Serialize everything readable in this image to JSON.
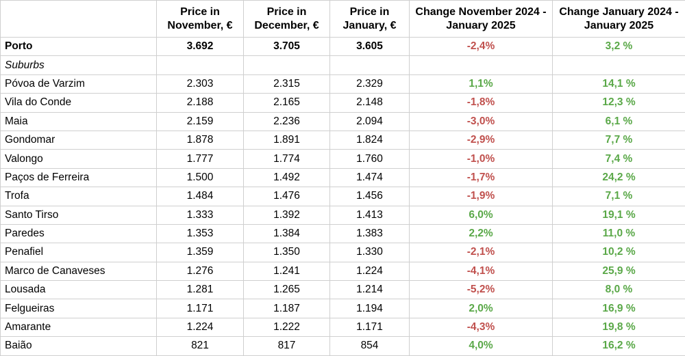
{
  "table": {
    "columns": [
      "Price in November, €",
      "Price in December, €",
      "Price in January, €",
      "Change November 2024 - January 2025",
      "Change January 2024 - January 2025"
    ],
    "headline_row": [
      "Porto",
      "3.692",
      "3.705",
      "3.605",
      "-2,4%",
      "3,2 %"
    ],
    "section": "Suburbs",
    "rows": [
      [
        "Póvoa de Varzim",
        "2.303",
        "2.315",
        "2.329",
        "1,1%",
        "14,1 %"
      ],
      [
        "Vila do Conde",
        "2.188",
        "2.165",
        "2.148",
        "-1,8%",
        "12,3 %"
      ],
      [
        "Maia",
        "2.159",
        "2.236",
        "2.094",
        "-3,0%",
        "6,1 %"
      ],
      [
        "Gondomar",
        "1.878",
        "1.891",
        "1.824",
        "-2,9%",
        "7,7 %"
      ],
      [
        "Valongo",
        "1.777",
        "1.774",
        "1.760",
        "-1,0%",
        "7,4 %"
      ],
      [
        "Paços de Ferreira",
        "1.500",
        "1.492",
        "1.474",
        "-1,7%",
        "24,2 %"
      ],
      [
        "Trofa",
        "1.484",
        "1.476",
        "1.456",
        "-1,9%",
        "7,1 %"
      ],
      [
        "Santo Tirso",
        "1.333",
        "1.392",
        "1.413",
        "6,0%",
        "19,1 %"
      ],
      [
        "Paredes",
        "1.353",
        "1.384",
        "1.383",
        "2,2%",
        "11,0 %"
      ],
      [
        "Penafiel",
        "1.359",
        "1.350",
        "1.330",
        "-2,1%",
        "10,2 %"
      ],
      [
        "Marco de Canaveses",
        "1.276",
        "1.241",
        "1.224",
        "-4,1%",
        "25,9 %"
      ],
      [
        "Lousada",
        "1.281",
        "1.265",
        "1.214",
        "-5,2%",
        "8,0 %"
      ],
      [
        "Felgueiras",
        "1.171",
        "1.187",
        "1.194",
        "2,0%",
        "16,9 %"
      ],
      [
        "Amarante",
        "1.224",
        "1.222",
        "1.171",
        "-4,3%",
        "19,8 %"
      ],
      [
        "Baião",
        "821",
        "817",
        "854",
        "4,0%",
        "16,2 %"
      ]
    ]
  }
}
